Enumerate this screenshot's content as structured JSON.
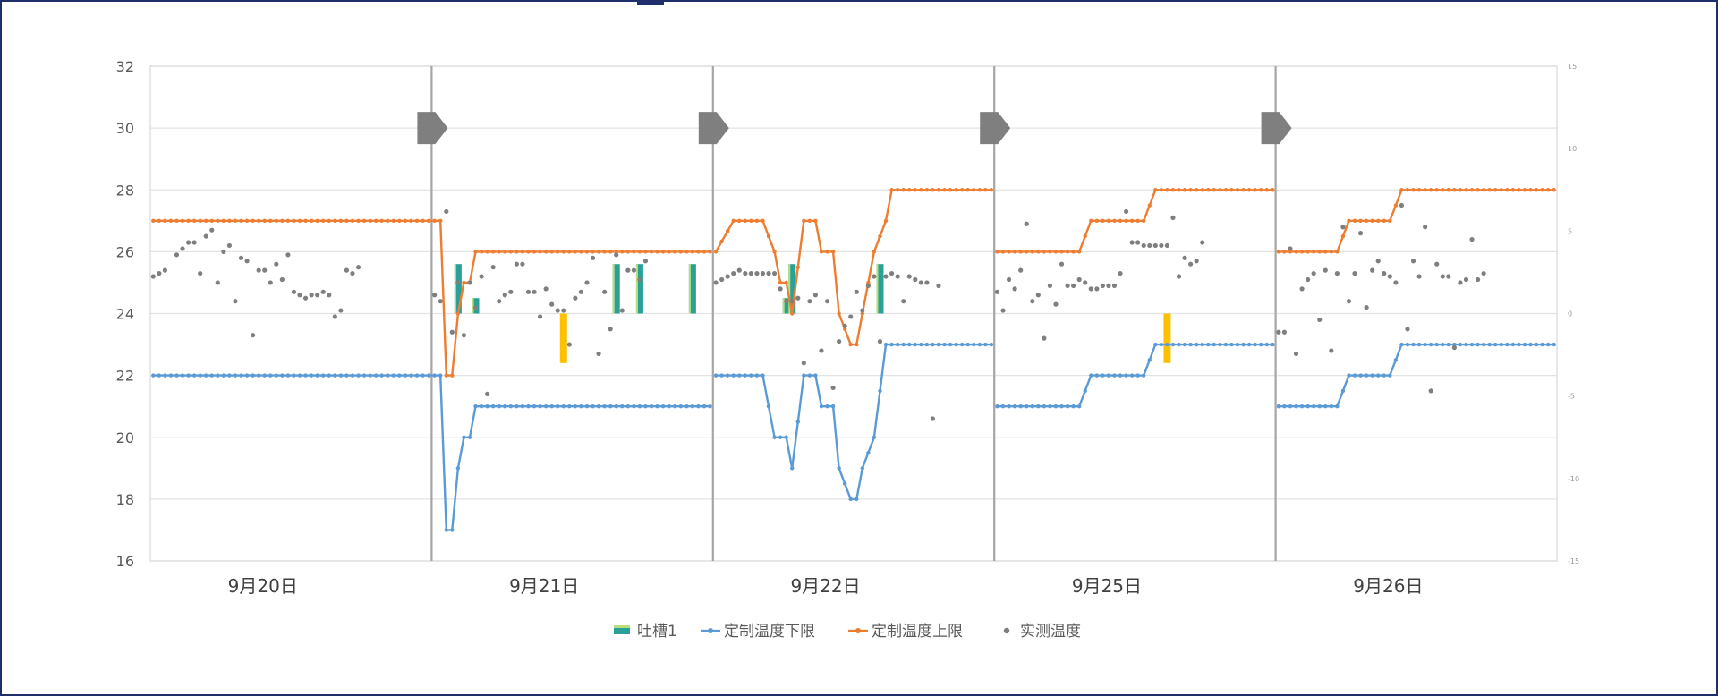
{
  "chart_data": {
    "type": "line",
    "title": "",
    "categories": [
      "9月20日",
      "9月21日",
      "9月22日",
      "9月25日",
      "9月26日"
    ],
    "points_per_day": 48,
    "ylim": [
      16,
      32
    ],
    "yticks": [
      16,
      18,
      20,
      22,
      24,
      26,
      28,
      30,
      32
    ],
    "y2lim": [
      -15,
      15
    ],
    "y2ticks": [
      -15,
      -10,
      -5,
      0,
      5,
      10,
      15
    ],
    "grid": true,
    "legend_position": "bottom",
    "colors": {
      "upper": "#ed7d31",
      "lower": "#5b9bd5",
      "measured": "#7f7f7f",
      "events": "#2aa198",
      "events_alt": "#ffc000",
      "divider": "#a6a6a6",
      "marker": "#7f7f7f"
    },
    "day_marker_icon": "right-arrow-marker-icon",
    "day_marker_value": 30,
    "series": [
      {
        "name": "定制温度上限",
        "color": "#ed7d31",
        "segments": [
          [
            [
              0,
              27
            ],
            [
              49,
              27
            ],
            [
              50,
              22
            ],
            [
              51,
              22
            ],
            [
              52,
              24
            ],
            [
              53,
              25
            ],
            [
              54,
              25
            ],
            [
              55,
              26
            ],
            [
              95,
              26
            ]
          ],
          [
            [
              96,
              26
            ],
            [
              99,
              27
            ],
            [
              104,
              27
            ],
            [
              106,
              26
            ],
            [
              107,
              25
            ],
            [
              108,
              25
            ],
            [
              109,
              24
            ],
            [
              111,
              27
            ],
            [
              113,
              27
            ],
            [
              114,
              26
            ],
            [
              116,
              26
            ],
            [
              117,
              24
            ],
            [
              119,
              23
            ],
            [
              120,
              23
            ],
            [
              121,
              24
            ],
            [
              123,
              26
            ],
            [
              125,
              27
            ],
            [
              126,
              28
            ],
            [
              143,
              28
            ]
          ],
          [
            [
              144,
              26
            ],
            [
              158,
              26
            ],
            [
              160,
              27
            ],
            [
              169,
              27
            ],
            [
              171,
              28
            ],
            [
              191,
              28
            ]
          ],
          [
            [
              192,
              26
            ],
            [
              202,
              26
            ],
            [
              204,
              27
            ],
            [
              211,
              27
            ],
            [
              213,
              28
            ],
            [
              239,
              28
            ]
          ]
        ]
      },
      {
        "name": "定制温度下限",
        "color": "#5b9bd5",
        "segments": [
          [
            [
              0,
              22
            ],
            [
              49,
              22
            ],
            [
              50,
              17
            ],
            [
              51,
              17
            ],
            [
              52,
              19
            ],
            [
              53,
              20
            ],
            [
              54,
              20
            ],
            [
              55,
              21
            ],
            [
              95,
              21
            ]
          ],
          [
            [
              96,
              22
            ],
            [
              99,
              22
            ],
            [
              104,
              22
            ],
            [
              106,
              20
            ],
            [
              107,
              20
            ],
            [
              108,
              20
            ],
            [
              109,
              19
            ],
            [
              111,
              22
            ],
            [
              113,
              22
            ],
            [
              114,
              21
            ],
            [
              116,
              21
            ],
            [
              117,
              19
            ],
            [
              119,
              18
            ],
            [
              120,
              18
            ],
            [
              121,
              19
            ],
            [
              123,
              20
            ],
            [
              125,
              23
            ],
            [
              143,
              23
            ]
          ],
          [
            [
              144,
              21
            ],
            [
              158,
              21
            ],
            [
              160,
              22
            ],
            [
              169,
              22
            ],
            [
              171,
              23
            ],
            [
              191,
              23
            ]
          ],
          [
            [
              192,
              21
            ],
            [
              202,
              21
            ],
            [
              204,
              22
            ],
            [
              211,
              22
            ],
            [
              213,
              23
            ],
            [
              239,
              23
            ]
          ]
        ]
      },
      {
        "name": "实测温度",
        "color": "#7f7f7f",
        "points": [
          [
            0,
            25.2
          ],
          [
            1,
            25.3
          ],
          [
            2,
            25.4
          ],
          [
            4,
            25.9
          ],
          [
            5,
            26.1
          ],
          [
            6,
            26.3
          ],
          [
            7,
            26.3
          ],
          [
            8,
            25.3
          ],
          [
            9,
            26.5
          ],
          [
            10,
            26.7
          ],
          [
            11,
            25.0
          ],
          [
            12,
            26.0
          ],
          [
            13,
            26.2
          ],
          [
            14,
            24.4
          ],
          [
            15,
            25.8
          ],
          [
            16,
            25.7
          ],
          [
            17,
            23.3
          ],
          [
            18,
            25.4
          ],
          [
            19,
            25.4
          ],
          [
            20,
            25.0
          ],
          [
            21,
            25.6
          ],
          [
            22,
            25.1
          ],
          [
            23,
            25.9
          ],
          [
            24,
            24.7
          ],
          [
            25,
            24.6
          ],
          [
            26,
            24.5
          ],
          [
            27,
            24.6
          ],
          [
            28,
            24.6
          ],
          [
            29,
            24.7
          ],
          [
            30,
            24.6
          ],
          [
            31,
            23.9
          ],
          [
            32,
            24.1
          ],
          [
            33,
            25.4
          ],
          [
            34,
            25.3
          ],
          [
            35,
            25.5
          ],
          [
            48,
            24.6
          ],
          [
            49,
            24.4
          ],
          [
            50,
            27.3
          ],
          [
            51,
            23.4
          ],
          [
            52,
            25.0
          ],
          [
            53,
            23.3
          ],
          [
            54,
            25.0
          ],
          [
            55,
            24.2
          ],
          [
            56,
            25.2
          ],
          [
            57,
            21.4
          ],
          [
            58,
            25.5
          ],
          [
            59,
            24.4
          ],
          [
            60,
            24.6
          ],
          [
            61,
            24.7
          ],
          [
            62,
            25.6
          ],
          [
            63,
            25.6
          ],
          [
            64,
            24.7
          ],
          [
            65,
            24.7
          ],
          [
            66,
            23.9
          ],
          [
            67,
            24.8
          ],
          [
            68,
            24.3
          ],
          [
            69,
            24.1
          ],
          [
            70,
            24.1
          ],
          [
            71,
            23.0
          ],
          [
            72,
            24.5
          ],
          [
            73,
            24.7
          ],
          [
            74,
            25.0
          ],
          [
            75,
            25.8
          ],
          [
            76,
            22.7
          ],
          [
            77,
            24.7
          ],
          [
            78,
            23.5
          ],
          [
            79,
            25.9
          ],
          [
            80,
            24.1
          ],
          [
            81,
            25.4
          ],
          [
            82,
            25.4
          ],
          [
            83,
            25.1
          ],
          [
            84,
            25.7
          ],
          [
            96,
            25.0
          ],
          [
            97,
            25.1
          ],
          [
            98,
            25.2
          ],
          [
            99,
            25.3
          ],
          [
            100,
            25.4
          ],
          [
            101,
            25.3
          ],
          [
            102,
            25.3
          ],
          [
            103,
            25.3
          ],
          [
            104,
            25.3
          ],
          [
            105,
            25.3
          ],
          [
            106,
            25.3
          ],
          [
            107,
            24.8
          ],
          [
            108,
            24.4
          ],
          [
            109,
            24.4
          ],
          [
            110,
            24.5
          ],
          [
            111,
            22.4
          ],
          [
            112,
            24.4
          ],
          [
            113,
            24.6
          ],
          [
            114,
            22.8
          ],
          [
            115,
            24.4
          ],
          [
            116,
            21.6
          ],
          [
            117,
            23.1
          ],
          [
            118,
            23.6
          ],
          [
            119,
            23.9
          ],
          [
            120,
            24.7
          ],
          [
            121,
            24.1
          ],
          [
            122,
            24.9
          ],
          [
            123,
            25.2
          ],
          [
            124,
            23.1
          ],
          [
            125,
            25.2
          ],
          [
            126,
            25.3
          ],
          [
            127,
            25.2
          ],
          [
            128,
            24.4
          ],
          [
            129,
            25.2
          ],
          [
            130,
            25.1
          ],
          [
            131,
            25.0
          ],
          [
            132,
            25.0
          ],
          [
            133,
            20.6
          ],
          [
            134,
            24.9
          ],
          [
            144,
            24.7
          ],
          [
            145,
            24.1
          ],
          [
            146,
            25.1
          ],
          [
            147,
            24.8
          ],
          [
            148,
            25.4
          ],
          [
            149,
            26.9
          ],
          [
            150,
            24.4
          ],
          [
            151,
            24.6
          ],
          [
            152,
            23.2
          ],
          [
            153,
            24.9
          ],
          [
            154,
            24.3
          ],
          [
            155,
            25.6
          ],
          [
            156,
            24.9
          ],
          [
            157,
            24.9
          ],
          [
            158,
            25.1
          ],
          [
            159,
            25.0
          ],
          [
            160,
            24.8
          ],
          [
            161,
            24.8
          ],
          [
            162,
            24.9
          ],
          [
            163,
            24.9
          ],
          [
            164,
            24.9
          ],
          [
            165,
            25.3
          ],
          [
            166,
            27.3
          ],
          [
            167,
            26.3
          ],
          [
            168,
            26.3
          ],
          [
            169,
            26.2
          ],
          [
            170,
            26.2
          ],
          [
            171,
            26.2
          ],
          [
            172,
            26.2
          ],
          [
            173,
            26.2
          ],
          [
            174,
            27.1
          ],
          [
            175,
            25.2
          ],
          [
            176,
            25.8
          ],
          [
            177,
            25.6
          ],
          [
            178,
            25.7
          ],
          [
            179,
            26.3
          ],
          [
            192,
            23.4
          ],
          [
            193,
            23.4
          ],
          [
            194,
            26.1
          ],
          [
            195,
            22.7
          ],
          [
            196,
            24.8
          ],
          [
            197,
            25.1
          ],
          [
            198,
            25.3
          ],
          [
            199,
            23.8
          ],
          [
            200,
            25.4
          ],
          [
            201,
            22.8
          ],
          [
            202,
            25.3
          ],
          [
            203,
            26.8
          ],
          [
            204,
            24.4
          ],
          [
            205,
            25.3
          ],
          [
            206,
            26.6
          ],
          [
            207,
            24.2
          ],
          [
            208,
            25.4
          ],
          [
            209,
            25.7
          ],
          [
            210,
            25.3
          ],
          [
            211,
            25.2
          ],
          [
            212,
            25.0
          ],
          [
            213,
            27.5
          ],
          [
            214,
            23.5
          ],
          [
            215,
            25.7
          ],
          [
            216,
            25.2
          ],
          [
            217,
            26.8
          ],
          [
            218,
            21.5
          ],
          [
            219,
            25.6
          ],
          [
            220,
            25.2
          ],
          [
            221,
            25.2
          ],
          [
            222,
            22.9
          ],
          [
            223,
            25.0
          ],
          [
            224,
            25.1
          ],
          [
            225,
            26.4
          ],
          [
            226,
            25.1
          ],
          [
            227,
            25.3
          ]
        ]
      }
    ],
    "bars": {
      "name": "吐槽1",
      "color": "#2aa198",
      "alt_color": "#ffc000",
      "baseline": 24,
      "items": [
        {
          "x": 52,
          "y": 25.6,
          "color": "#2aa198"
        },
        {
          "x": 55,
          "y": 24.5,
          "color": "#2aa198"
        },
        {
          "x": 70,
          "y": 22.4,
          "color": "#ffc000",
          "from": 24
        },
        {
          "x": 79,
          "y": 25.6,
          "color": "#2aa198"
        },
        {
          "x": 83,
          "y": 25.6,
          "color": "#2aa198"
        },
        {
          "x": 92,
          "y": 25.6,
          "color": "#2aa198"
        },
        {
          "x": 108,
          "y": 24.5,
          "color": "#2aa198"
        },
        {
          "x": 109,
          "y": 25.6,
          "color": "#2aa198"
        },
        {
          "x": 124,
          "y": 25.6,
          "color": "#2aa198"
        },
        {
          "x": 173,
          "y": 22.4,
          "color": "#ffc000",
          "from": 24
        }
      ]
    },
    "day_markers": [
      1,
      2,
      3,
      4
    ]
  },
  "legend": [
    {
      "label": "吐槽1",
      "kind": "bar",
      "color": "#2aa198"
    },
    {
      "label": "定制温度下限",
      "kind": "line",
      "color": "#5b9bd5"
    },
    {
      "label": "定制温度上限",
      "kind": "line",
      "color": "#ed7d31"
    },
    {
      "label": "实测温度",
      "kind": "dot",
      "color": "#7f7f7f"
    }
  ]
}
